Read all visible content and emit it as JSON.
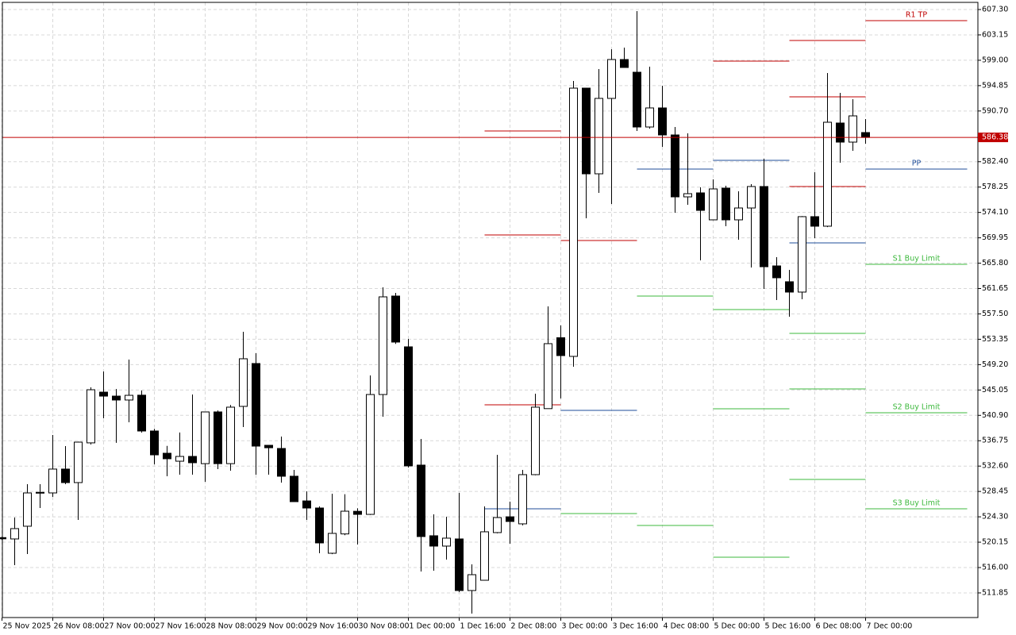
{
  "chart_data": {
    "type": "candlestick",
    "categories": [
      "25 Nov 2025",
      null,
      null,
      null,
      "26 Nov 08:00",
      null,
      null,
      null,
      "27 Nov 00:00",
      null,
      null,
      null,
      "27 Nov 16:00",
      null,
      null,
      null,
      "28 Nov 08:00",
      null,
      null,
      null,
      "29 Nov 00:00",
      null,
      null,
      null,
      "29 Nov 16:00",
      null,
      null,
      null,
      "30 Nov 08:00",
      null,
      null,
      null,
      "1 Dec 00:00",
      null,
      null,
      null,
      "1 Dec 16:00",
      null,
      null,
      null,
      "2 Dec 08:00",
      null,
      null,
      null,
      "3 Dec 00:00",
      null,
      null,
      null,
      "3 Dec 16:00",
      null,
      null,
      null,
      "4 Dec 08:00",
      null,
      null,
      null,
      "5 Dec 00:00",
      null,
      null,
      null,
      "5 Dec 16:00",
      null,
      null,
      null,
      "6 Dec 08:00",
      null,
      null,
      null,
      "7 Dec 00:00"
    ],
    "open": [
      520.9,
      520.68,
      522.76,
      528.2,
      528.21,
      532.11,
      529.9,
      536.4,
      544.7,
      544.05,
      543.41,
      544.2,
      538.34,
      534.7,
      533.4,
      534.18,
      533.0,
      541.46,
      533.0,
      542.37,
      549.38,
      536.0,
      535.48,
      530.94,
      526.9,
      525.74,
      518.34,
      521.5,
      525.2,
      524.7,
      544.31,
      560.42,
      552.11,
      532.76,
      521.2,
      519.51,
      520.68,
      512.24,
      513.92,
      521.72,
      524.3,
      523.15,
      531.2,
      542.0,
      553.6,
      550.55,
      594.44,
      580.42,
      592.76,
      599.12,
      597.04,
      588.08,
      591.2,
      586.78,
      576.65,
      577.3,
      572.89,
      578.08,
      572.89,
      574.83,
      578.34,
      565.35,
      562.76,
      561.07,
      573.41,
      571.85,
      588.73,
      585.61,
      587.17
    ],
    "high": [
      521.0,
      524.18,
      529.64,
      529.64,
      537.69,
      535.87,
      536.6,
      545.48,
      548.08,
      545.2,
      550.03,
      544.96,
      538.7,
      535.9,
      538.1,
      544.31,
      541.5,
      541.7,
      542.6,
      554.57,
      551.07,
      536.0,
      537.43,
      531.98,
      528.47,
      526.0,
      528.08,
      528.0,
      525.7,
      547.43,
      561.85,
      560.94,
      553.41,
      537.04,
      524.7,
      524.31,
      528.21,
      516.52,
      526.0,
      534.44,
      526.78,
      531.98,
      544.44,
      558.73,
      555.61,
      595.61,
      594.5,
      597.56,
      600.81,
      601.07,
      607.04,
      597.95,
      594.83,
      588.08,
      587.04,
      578.21,
      579.51,
      578.47,
      577.56,
      578.73,
      582.89,
      566.78,
      564.7,
      573.5,
      580.68,
      596.91,
      593.67,
      592.63,
      589.38
    ],
    "low": [
      520.5,
      516.39,
      518.21,
      525.74,
      527.56,
      529.64,
      523.8,
      536.13,
      540.42,
      536.4,
      539.77,
      538.08,
      532.89,
      530.94,
      531.2,
      531.2,
      530.03,
      532.1,
      531.85,
      538.99,
      531.2,
      531.2,
      529.9,
      526.78,
      523.8,
      518.34,
      518.2,
      521.3,
      519.77,
      524.6,
      540.68,
      552.6,
      532.37,
      515.35,
      515.48,
      517.3,
      511.98,
      508.47,
      513.9,
      521.6,
      519.9,
      522.9,
      531.1,
      541.98,
      543.67,
      548.86,
      573.15,
      577.3,
      575.48,
      597.8,
      587.43,
      587.8,
      584.83,
      574.05,
      575.35,
      566.26,
      572.8,
      571.85,
      569.64,
      565.09,
      561.59,
      559.77,
      557.04,
      559.9,
      569.9,
      571.7,
      582.24,
      584.18,
      585.35
    ],
    "close": [
      520.7,
      522.37,
      528.21,
      528.3,
      532.11,
      529.9,
      536.52,
      545.09,
      544.05,
      543.41,
      544.18,
      538.34,
      534.44,
      533.8,
      534.18,
      533.15,
      541.46,
      533.0,
      542.24,
      550.16,
      535.87,
      535.6,
      530.94,
      526.78,
      525.74,
      520.03,
      521.59,
      525.22,
      524.7,
      544.31,
      560.29,
      552.89,
      532.63,
      521.07,
      519.51,
      520.81,
      512.24,
      514.83,
      521.85,
      524.18,
      523.54,
      531.2,
      542.24,
      552.63,
      550.68,
      594.44,
      580.42,
      592.76,
      599.12,
      597.82,
      588.08,
      591.2,
      586.78,
      576.65,
      577.17,
      574.44,
      577.95,
      572.89,
      574.83,
      578.34,
      565.22,
      563.41,
      561.07,
      573.41,
      571.85,
      588.86,
      585.61,
      589.9,
      586.38
    ],
    "up_color": "#ffffff",
    "down_color": "#000000",
    "outline_color": "#000000",
    "last_price": 586.38,
    "last_price_color": "#c00000",
    "ylim": [
      507.82,
      608.47
    ],
    "yticks": [
      {
        "value": 607.3,
        "label": "607.30"
      },
      {
        "value": 603.15,
        "label": "603.15"
      },
      {
        "value": 599,
        "label": "599.00"
      },
      {
        "value": 594.85,
        "label": "594.85"
      },
      {
        "value": 590.7,
        "label": "590.70"
      },
      {
        "value": 582.4,
        "label": "582.40"
      },
      {
        "value": 578.25,
        "label": "578.25"
      },
      {
        "value": 574.1,
        "label": "574.10"
      },
      {
        "value": 569.95,
        "label": "569.95"
      },
      {
        "value": 565.8,
        "label": "565.80"
      },
      {
        "value": 561.65,
        "label": "561.65"
      },
      {
        "value": 557.5,
        "label": "557.50"
      },
      {
        "value": 553.35,
        "label": "553.35"
      },
      {
        "value": 549.2,
        "label": "549.20"
      },
      {
        "value": 545.05,
        "label": "545.05"
      },
      {
        "value": 540.9,
        "label": "540.90"
      },
      {
        "value": 536.75,
        "label": "536.75"
      },
      {
        "value": 532.6,
        "label": "532.60"
      },
      {
        "value": 528.45,
        "label": "528.45"
      },
      {
        "value": 524.3,
        "label": "524.30"
      },
      {
        "value": 520.15,
        "label": "520.15"
      },
      {
        "value": 516,
        "label": "516.00"
      },
      {
        "value": 511.85,
        "label": "511.85"
      }
    ],
    "grid": true,
    "levels": [
      {
        "start": 38,
        "end": 44,
        "lines": [
          {
            "value": 587.43,
            "color": "#c00000"
          },
          {
            "value": 570.42,
            "color": "#c00000"
          },
          {
            "value": 542.63,
            "color": "#c00000"
          },
          {
            "value": 525.61,
            "color": "#1f4e9a"
          }
        ]
      },
      {
        "start": 44,
        "end": 50,
        "lines": [
          {
            "value": 569.51,
            "color": "#c00000"
          },
          {
            "value": 541.72,
            "color": "#1f4e9a"
          },
          {
            "value": 524.83,
            "color": "#3cb83c"
          }
        ]
      },
      {
        "start": 50,
        "end": 56,
        "lines": [
          {
            "value": 581.2,
            "color": "#1f4e9a"
          },
          {
            "value": 560.42,
            "color": "#3cb83c"
          },
          {
            "value": 522.89,
            "color": "#3cb83c"
          }
        ]
      },
      {
        "start": 56,
        "end": 62,
        "lines": [
          {
            "value": 598.86,
            "color": "#c00000"
          },
          {
            "value": 582.63,
            "color": "#1f4e9a"
          },
          {
            "value": 558.21,
            "color": "#3cb83c"
          },
          {
            "value": 541.98,
            "color": "#3cb83c"
          },
          {
            "value": 517.69,
            "color": "#3cb83c"
          }
        ]
      },
      {
        "start": 62,
        "end": 68,
        "lines": [
          {
            "value": 602.24,
            "color": "#c00000"
          },
          {
            "value": 593.02,
            "color": "#c00000"
          },
          {
            "value": 578.34,
            "color": "#c00000"
          },
          {
            "value": 569.12,
            "color": "#1f4e9a"
          },
          {
            "value": 554.31,
            "color": "#3cb83c"
          },
          {
            "value": 545.22,
            "color": "#3cb83c"
          },
          {
            "value": 530.42,
            "color": "#3cb83c"
          }
        ]
      },
      {
        "start": 68,
        "end": 76,
        "lines": [
          {
            "value": 605.48,
            "color": "#c00000",
            "label": "R1 TP"
          },
          {
            "value": 581.2,
            "color": "#1f4e9a",
            "label": "PP"
          },
          {
            "value": 565.61,
            "color": "#3cb83c",
            "label": "S1 Buy Limit"
          },
          {
            "value": 541.33,
            "color": "#3cb83c",
            "label": "S2 Buy Limit"
          },
          {
            "value": 525.61,
            "color": "#3cb83c",
            "label": "S3 Buy Limit"
          }
        ]
      }
    ]
  }
}
